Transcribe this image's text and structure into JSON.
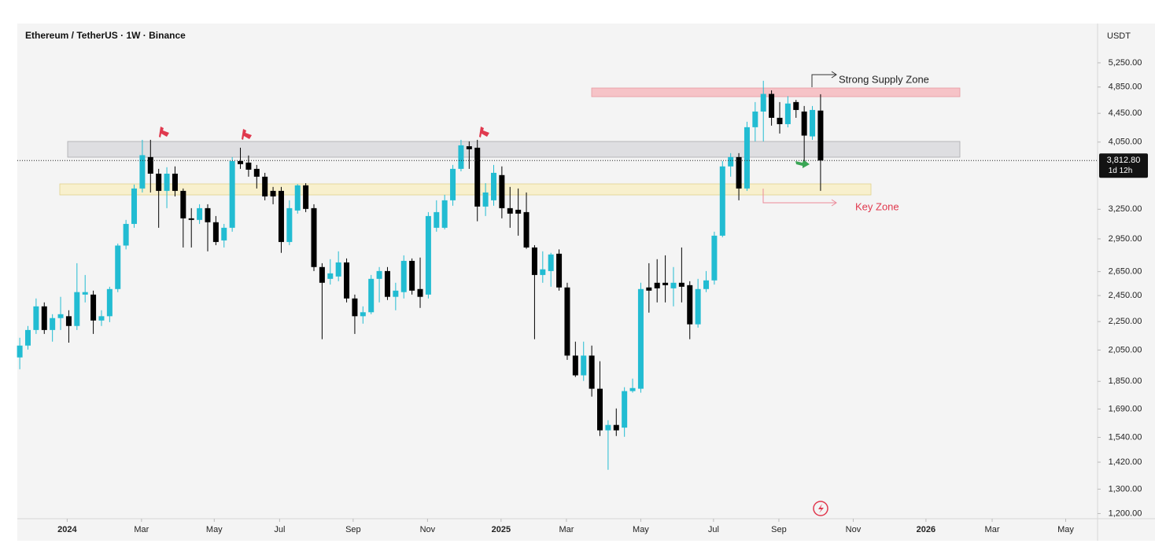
{
  "chart_data": {
    "type": "candlestick",
    "title": "Ethereum / TetherUS · 1W · Binance",
    "y_axis_label": "USDT",
    "log_scale": true,
    "grid": false,
    "up_color": "#22bcd2",
    "down_color": "#000000",
    "open": [
      2001,
      2080,
      2189,
      2365,
      2189,
      2276,
      2290,
      2218,
      2458,
      2458,
      2258,
      2290,
      2503,
      2886,
      3098,
      3479,
      3856,
      3652,
      3452,
      3652,
      3452,
      3155,
      3139,
      3262,
      3115,
      2935,
      3059,
      3806,
      3787,
      3710,
      3616,
      3452,
      3452,
      2920,
      3237,
      3515,
      3262,
      2690,
      2588,
      2608,
      2731,
      2427,
      2290,
      2320,
      2588,
      2655,
      2440,
      2478,
      2745,
      2503,
      2458,
      3059,
      3059,
      3347,
      3710,
      3995,
      3976,
      3279,
      3347,
      3635,
      3262,
      3245,
      3220,
      2868,
      2621,
      2655,
      2810,
      2516,
      2013,
      1887,
      2013,
      1806,
      1576,
      1604,
      1590,
      1792,
      1806,
      2516,
      2555,
      2555,
      2509,
      2555,
      2535,
      2230,
      2503,
      2575,
      2981,
      3740,
      3856,
      3479,
      4252,
      4476,
      4742,
      4385,
      4295,
      4617,
      4476,
      4126,
      4490
    ],
    "high": [
      2134,
      2218,
      2427,
      2396,
      2305,
      2440,
      2335,
      2724,
      2621,
      2490,
      2335,
      2522,
      2905,
      3139,
      3524,
      4080,
      4080,
      3710,
      3730,
      3740,
      3479,
      3262,
      3304,
      3304,
      3179,
      3098,
      3856,
      3976,
      3876,
      3758,
      3662,
      3497,
      3497,
      3347,
      3530,
      3540,
      3304,
      2724,
      2760,
      2832,
      2767,
      2458,
      2365,
      2621,
      2690,
      2690,
      2555,
      2795,
      2767,
      2775,
      3220,
      3347,
      3408,
      3758,
      4080,
      4059,
      4080,
      3540,
      3758,
      3740,
      3497,
      3479,
      3434,
      2890,
      2832,
      2818,
      2850,
      2555,
      2107,
      2107,
      2080,
      1976,
      1629,
      1693,
      1815,
      1867,
      2555,
      2724,
      2760,
      2795,
      2690,
      2868,
      2568,
      2588,
      2655,
      3020,
      3806,
      3906,
      3906,
      4329,
      4617,
      4950,
      4798,
      4617,
      4707,
      4650,
      4558,
      4558,
      4737
    ],
    "low": [
      1925,
      2053,
      2161,
      2161,
      2107,
      2189,
      2100,
      2189,
      2396,
      2161,
      2218,
      2246,
      2478,
      2850,
      3059,
      3434,
      3434,
      3059,
      3262,
      3390,
      2868,
      2868,
      3098,
      2832,
      2890,
      2868,
      3020,
      3710,
      3616,
      3479,
      3347,
      3304,
      2818,
      2890,
      3204,
      3220,
      2655,
      2124,
      2540,
      2568,
      2396,
      2161,
      2235,
      2305,
      2396,
      2415,
      2335,
      2427,
      2458,
      2353,
      2427,
      3020,
      3043,
      3288,
      3680,
      3710,
      3125,
      3179,
      3288,
      3155,
      3059,
      2981,
      2855,
      2124,
      2555,
      2522,
      2490,
      1985,
      1877,
      1853,
      1760,
      1547,
      1385,
      1547,
      1543,
      1783,
      1783,
      2317,
      2396,
      2396,
      2365,
      2396,
      2124,
      2206,
      2478,
      2540,
      2966,
      3616,
      3347,
      3452,
      4059,
      4059,
      4274,
      4165,
      4250,
      4385,
      3806,
      4080,
      3452
    ],
    "close": [
      2080,
      2189,
      2365,
      2189,
      2276,
      2305,
      2218,
      2478,
      2478,
      2258,
      2290,
      2503,
      2886,
      3098,
      3479,
      3880,
      3652,
      3452,
      3652,
      3452,
      3155,
      3139,
      3262,
      3115,
      2920,
      3059,
      3806,
      3768,
      3700,
      3616,
      3390,
      3390,
      2920,
      3262,
      3515,
      3254,
      2690,
      2555,
      2635,
      2731,
      2427,
      2290,
      2320,
      2588,
      2655,
      2440,
      2490,
      2745,
      2490,
      2440,
      3179,
      3220,
      3347,
      3710,
      4007,
      3956,
      3279,
      3434,
      3662,
      3262,
      3204,
      3204,
      2868,
      2621,
      2670,
      2803,
      2516,
      2013,
      1887,
      2013,
      1806,
      1576,
      1604,
      1576,
      1792,
      1810,
      2503,
      2490,
      2509,
      2535,
      2555,
      2522,
      2230,
      2503,
      2575,
      2981,
      3740,
      3856,
      3479,
      4252,
      4476,
      4742,
      4385,
      4295,
      4595,
      4499,
      4137,
      4499,
      3812.8
    ],
    "xlim": [
      -0.3,
      131.9
    ],
    "xticks": [
      {
        "value": 5.8,
        "label": "2024"
      },
      {
        "value": 14.9,
        "label": "Mar"
      },
      {
        "value": 23.8,
        "label": "May"
      },
      {
        "value": 31.8,
        "label": "Jul"
      },
      {
        "value": 40.8,
        "label": "Sep"
      },
      {
        "value": 49.9,
        "label": "Nov"
      },
      {
        "value": 58.9,
        "label": "2025"
      },
      {
        "value": 66.9,
        "label": "Mar"
      },
      {
        "value": 76.0,
        "label": "May"
      },
      {
        "value": 84.9,
        "label": "Jul"
      },
      {
        "value": 92.9,
        "label": "Sep"
      },
      {
        "value": 102.0,
        "label": "Nov"
      },
      {
        "value": 110.9,
        "label": "2026"
      },
      {
        "value": 119.0,
        "label": "Mar"
      },
      {
        "value": 128.0,
        "label": "May"
      }
    ],
    "ylim": [
      1180,
      5970
    ],
    "yticks": [
      {
        "value": 5250,
        "label": "5,250.00"
      },
      {
        "value": 4850,
        "label": "4,850.00"
      },
      {
        "value": 4450,
        "label": "4,450.00"
      },
      {
        "value": 4050,
        "label": "4,050.00"
      },
      {
        "value": 3250,
        "label": "3,250.00"
      },
      {
        "value": 2950,
        "label": "2,950.00"
      },
      {
        "value": 2650,
        "label": "2,650.00"
      },
      {
        "value": 2450,
        "label": "2,450.00"
      },
      {
        "value": 2250,
        "label": "2,250.00"
      },
      {
        "value": 2050,
        "label": "2,050.00"
      },
      {
        "value": 1850,
        "label": "1,850.00"
      },
      {
        "value": 1690,
        "label": "1,690.00"
      },
      {
        "value": 1540,
        "label": "1,540.00"
      },
      {
        "value": 1420,
        "label": "1,420.00"
      },
      {
        "value": 1300,
        "label": "1,300.00"
      },
      {
        "value": 1200,
        "label": "1,200.00"
      }
    ],
    "current_price": {
      "value": 3812.8,
      "label": "3,812.80"
    },
    "countdown": "1d 12h",
    "annotations": [
      "Strong Supply Zone",
      "Key Zone"
    ]
  }
}
